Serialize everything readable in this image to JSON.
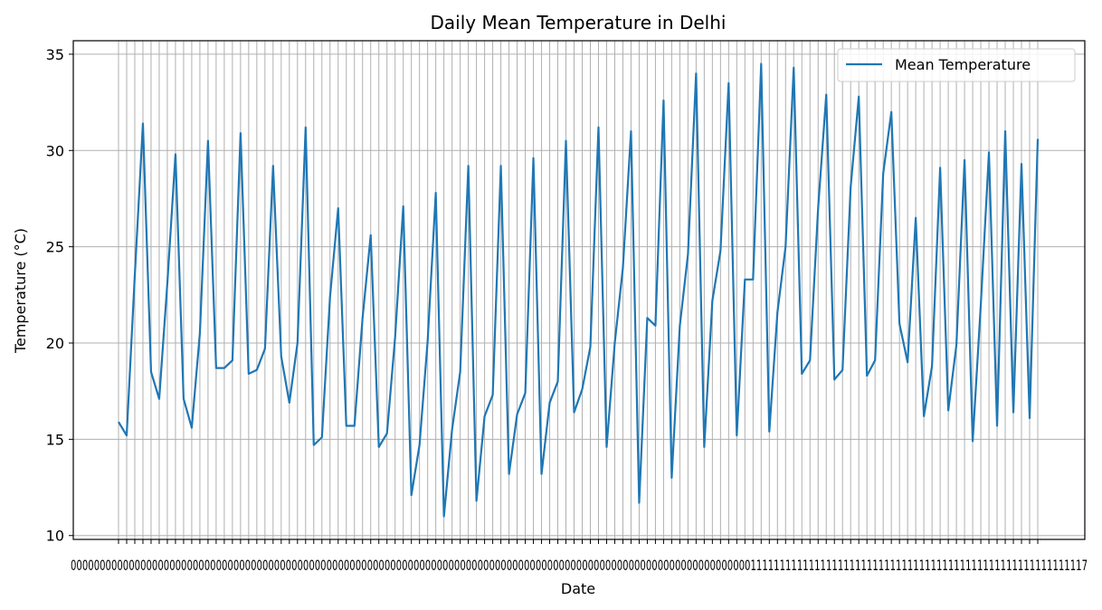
{
  "chart_data": {
    "type": "line",
    "title": "Daily Mean Temperature in Delhi",
    "xlabel": "Date",
    "ylabel": "Temperature (°C)",
    "ylim": [
      9.8,
      35.7
    ],
    "yticks": [
      10,
      15,
      20,
      25,
      30,
      35
    ],
    "grid": true,
    "legend": "top-right",
    "x_tick_labels_overlapping": "0000000000000000000000000000000000000000000000000000000000000000000000000000000000000000000000000000000000000000000001111111111111111111111111111111111111111111111111111111117",
    "series": [
      {
        "name": "Mean Temperature",
        "color": "#1f77b4",
        "values": [
          15.9,
          15.2,
          23.5,
          31.4,
          18.5,
          17.1,
          23.1,
          29.8,
          17.1,
          15.6,
          20.5,
          30.5,
          18.7,
          18.7,
          19.1,
          30.9,
          18.4,
          18.6,
          19.7,
          29.2,
          19.3,
          16.9,
          20.0,
          31.2,
          14.7,
          15.1,
          22.4,
          27.0,
          15.7,
          15.7,
          21.3,
          25.6,
          14.6,
          15.3,
          20.3,
          27.1,
          12.1,
          14.7,
          20.1,
          27.8,
          11.0,
          15.5,
          18.5,
          29.2,
          11.8,
          16.2,
          17.3,
          29.2,
          13.2,
          16.3,
          17.4,
          29.6,
          13.2,
          16.9,
          18.0,
          30.5,
          16.4,
          17.6,
          19.8,
          31.2,
          14.6,
          20.0,
          23.9,
          31.0,
          11.7,
          21.3,
          20.9,
          32.6,
          13.0,
          20.9,
          24.6,
          34.0,
          14.6,
          22.2,
          24.8,
          33.5,
          15.2,
          23.3,
          23.3,
          34.5,
          15.4,
          21.6,
          25.0,
          34.3,
          18.4,
          19.1,
          27.0,
          32.9,
          18.1,
          18.6,
          28.1,
          32.8,
          18.3,
          19.1,
          28.8,
          32.0,
          21.0,
          19.0,
          26.5,
          16.2,
          18.8,
          29.1,
          16.5,
          19.9,
          29.5,
          14.9,
          22.0,
          29.9,
          15.7,
          31.0,
          16.4,
          29.3,
          16.1,
          30.6
        ]
      }
    ]
  }
}
